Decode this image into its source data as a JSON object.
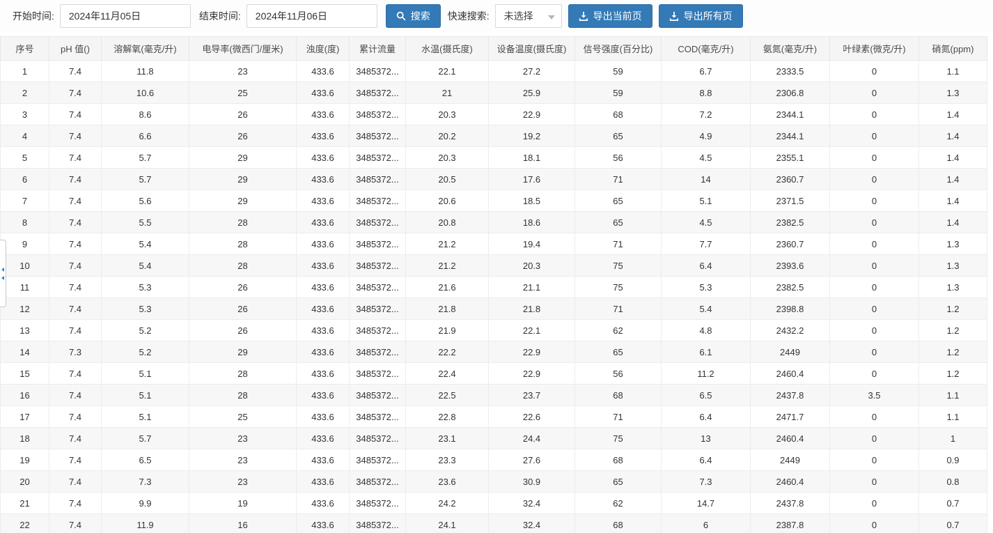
{
  "toolbar": {
    "start_label": "开始时间:",
    "start_value": "2024年11月05日",
    "end_label": "结束时间:",
    "end_value": "2024年11月06日",
    "search_label": "搜索",
    "quick_search_label": "快速搜索:",
    "quick_search_value": "未选择",
    "export_current_label": "导出当前页",
    "export_all_label": "导出所有页",
    "accent_color": "#337ab7"
  },
  "icons": {
    "search": "magnifier-icon",
    "export_current": "download-icon",
    "export_all": "download-icon",
    "select_caret": "chevron-down-icon",
    "side_handle": "collapse-handle-arrows"
  },
  "table": {
    "columns": [
      "序号",
      "pH 值()",
      "溶解氧(毫克/升)",
      "电导率(微西门/厘米)",
      "浊度(度)",
      "累计流量",
      "水温(摄氏度)",
      "设备温度(摄氏度)",
      "信号强度(百分比)",
      "COD(毫克/升)",
      "氨氮(毫克/升)",
      "叶绿素(微克/升)",
      "硝氮(ppm)"
    ],
    "rows": [
      [
        "1",
        "7.4",
        "11.8",
        "23",
        "433.6",
        "3485372...",
        "22.1",
        "27.2",
        "59",
        "6.7",
        "2333.5",
        "0",
        "1.1"
      ],
      [
        "2",
        "7.4",
        "10.6",
        "25",
        "433.6",
        "3485372...",
        "21",
        "25.9",
        "59",
        "8.8",
        "2306.8",
        "0",
        "1.3"
      ],
      [
        "3",
        "7.4",
        "8.6",
        "26",
        "433.6",
        "3485372...",
        "20.3",
        "22.9",
        "68",
        "7.2",
        "2344.1",
        "0",
        "1.4"
      ],
      [
        "4",
        "7.4",
        "6.6",
        "26",
        "433.6",
        "3485372...",
        "20.2",
        "19.2",
        "65",
        "4.9",
        "2344.1",
        "0",
        "1.4"
      ],
      [
        "5",
        "7.4",
        "5.7",
        "29",
        "433.6",
        "3485372...",
        "20.3",
        "18.1",
        "56",
        "4.5",
        "2355.1",
        "0",
        "1.4"
      ],
      [
        "6",
        "7.4",
        "5.7",
        "29",
        "433.6",
        "3485372...",
        "20.5",
        "17.6",
        "71",
        "14",
        "2360.7",
        "0",
        "1.4"
      ],
      [
        "7",
        "7.4",
        "5.6",
        "29",
        "433.6",
        "3485372...",
        "20.6",
        "18.5",
        "65",
        "5.1",
        "2371.5",
        "0",
        "1.4"
      ],
      [
        "8",
        "7.4",
        "5.5",
        "28",
        "433.6",
        "3485372...",
        "20.8",
        "18.6",
        "65",
        "4.5",
        "2382.5",
        "0",
        "1.4"
      ],
      [
        "9",
        "7.4",
        "5.4",
        "28",
        "433.6",
        "3485372...",
        "21.2",
        "19.4",
        "71",
        "7.7",
        "2360.7",
        "0",
        "1.3"
      ],
      [
        "10",
        "7.4",
        "5.4",
        "28",
        "433.6",
        "3485372...",
        "21.2",
        "20.3",
        "75",
        "6.4",
        "2393.6",
        "0",
        "1.3"
      ],
      [
        "11",
        "7.4",
        "5.3",
        "26",
        "433.6",
        "3485372...",
        "21.6",
        "21.1",
        "75",
        "5.3",
        "2382.5",
        "0",
        "1.3"
      ],
      [
        "12",
        "7.4",
        "5.3",
        "26",
        "433.6",
        "3485372...",
        "21.8",
        "21.8",
        "71",
        "5.4",
        "2398.8",
        "0",
        "1.2"
      ],
      [
        "13",
        "7.4",
        "5.2",
        "26",
        "433.6",
        "3485372...",
        "21.9",
        "22.1",
        "62",
        "4.8",
        "2432.2",
        "0",
        "1.2"
      ],
      [
        "14",
        "7.3",
        "5.2",
        "29",
        "433.6",
        "3485372...",
        "22.2",
        "22.9",
        "65",
        "6.1",
        "2449",
        "0",
        "1.2"
      ],
      [
        "15",
        "7.4",
        "5.1",
        "28",
        "433.6",
        "3485372...",
        "22.4",
        "22.9",
        "56",
        "11.2",
        "2460.4",
        "0",
        "1.2"
      ],
      [
        "16",
        "7.4",
        "5.1",
        "28",
        "433.6",
        "3485372...",
        "22.5",
        "23.7",
        "68",
        "6.5",
        "2437.8",
        "3.5",
        "1.1"
      ],
      [
        "17",
        "7.4",
        "5.1",
        "25",
        "433.6",
        "3485372...",
        "22.8",
        "22.6",
        "71",
        "6.4",
        "2471.7",
        "0",
        "1.1"
      ],
      [
        "18",
        "7.4",
        "5.7",
        "23",
        "433.6",
        "3485372...",
        "23.1",
        "24.4",
        "75",
        "13",
        "2460.4",
        "0",
        "1"
      ],
      [
        "19",
        "7.4",
        "6.5",
        "23",
        "433.6",
        "3485372...",
        "23.3",
        "27.6",
        "68",
        "6.4",
        "2449",
        "0",
        "0.9"
      ],
      [
        "20",
        "7.4",
        "7.3",
        "23",
        "433.6",
        "3485372...",
        "23.6",
        "30.9",
        "65",
        "7.3",
        "2460.4",
        "0",
        "0.8"
      ],
      [
        "21",
        "7.4",
        "9.9",
        "19",
        "433.6",
        "3485372...",
        "24.2",
        "32.4",
        "62",
        "14.7",
        "2437.8",
        "0",
        "0.7"
      ],
      [
        "22",
        "7.4",
        "11.9",
        "16",
        "433.6",
        "3485372...",
        "24.1",
        "32.4",
        "68",
        "6",
        "2387.8",
        "0",
        "0.7"
      ]
    ]
  }
}
